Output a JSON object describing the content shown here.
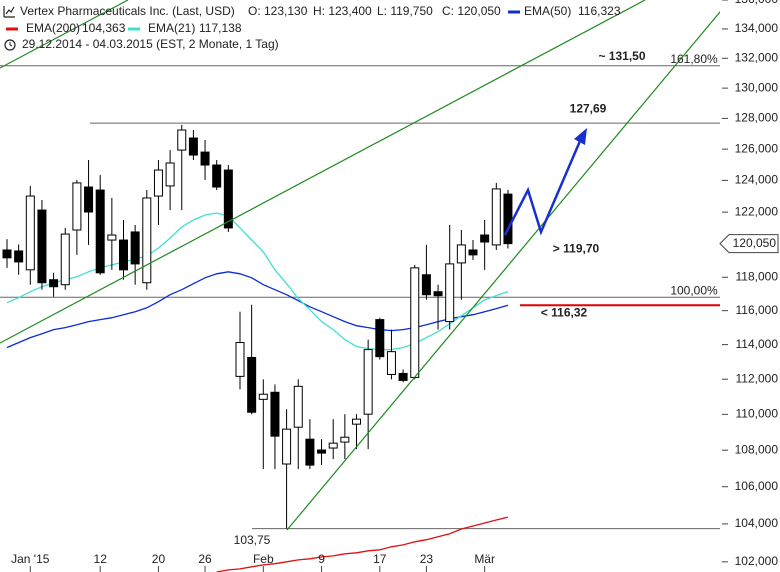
{
  "chart_data": {
    "type": "candlestick",
    "title": "Vertex Pharmaceuticals Inc. (Last, USD)",
    "subtitle": "29.12.2014 - 04.03.2015 (EST, 2 Monate, 1 Tag)",
    "header": {
      "open": "O: 123,130",
      "high": "H: 123,400",
      "low": "L: 119,750",
      "close": "C: 120,050"
    },
    "categories": [
      null,
      null,
      "Jan '15",
      null,
      null,
      null,
      null,
      null,
      "12",
      null,
      null,
      null,
      null,
      "20",
      null,
      null,
      null,
      "26",
      null,
      null,
      null,
      null,
      "Feb",
      null,
      null,
      null,
      null,
      "9",
      null,
      null,
      null,
      null,
      "17",
      null,
      null,
      null,
      "23",
      null,
      null,
      null,
      null,
      "Mär",
      null,
      null
    ],
    "open": [
      119.66,
      119.6,
      118.45,
      122.13,
      117.85,
      117.55,
      120.89,
      123.58,
      123.39,
      120.27,
      120.27,
      120.77,
      117.67,
      123.01,
      123.65,
      125.94,
      126.72,
      125.81,
      124.98,
      124.66,
      112.16,
      113.25,
      110.85,
      111.25,
      107.24,
      109.28,
      108.61,
      108.01,
      108.12,
      108.45,
      109.45,
      110.01,
      115.47,
      112.27,
      112.33,
      112.1,
      118.15,
      117.13,
      115.35,
      118.87,
      119.66,
      120.58,
      119.97,
      123.13
    ],
    "high": [
      120.33,
      120.0,
      123.65,
      122.76,
      118.27,
      121.02,
      124.03,
      125.3,
      124.34,
      122.89,
      121.51,
      121.2,
      123.39,
      125.3,
      125.94,
      127.57,
      127.24,
      126.59,
      125.3,
      124.98,
      115.94,
      116.35,
      111.99,
      111.7,
      110.29,
      111.99,
      109.73,
      108.61,
      109.73,
      110.01,
      110.01,
      114.29,
      115.58,
      114.88,
      112.56,
      118.75,
      119.97,
      117.55,
      121.2,
      120.89,
      120.27,
      121.51,
      123.84,
      123.4
    ],
    "low": [
      118.57,
      118.15,
      117.55,
      117.25,
      116.83,
      117.25,
      119.36,
      119.97,
      118.15,
      118.45,
      117.85,
      117.55,
      117.25,
      121.2,
      122.13,
      122.13,
      125.3,
      124.03,
      123.39,
      120.77,
      111.42,
      110.01,
      106.96,
      106.96,
      103.75,
      106.96,
      106.96,
      107.18,
      107.51,
      107.51,
      108.06,
      108.06,
      113.13,
      111.99,
      111.82,
      111.99,
      116.65,
      114.88,
      114.88,
      116.65,
      119.05,
      118.45,
      119.66,
      119.75
    ],
    "close": [
      119.18,
      118.93,
      123.01,
      117.67,
      117.43,
      120.64,
      123.84,
      122.01,
      118.27,
      120.58,
      118.45,
      118.81,
      122.89,
      124.66,
      125.11,
      127.24,
      125.62,
      124.98,
      123.58,
      121.02,
      114.12,
      110.12,
      111.14,
      108.78,
      109.17,
      111.59,
      107.18,
      107.84,
      108.39,
      108.72,
      109.73,
      113.71,
      113.3,
      113.59,
      111.93,
      118.57,
      116.95,
      116.89,
      118.81,
      119.97,
      119.36,
      120.15,
      123.46,
      120.05
    ],
    "up_color": "#ffffff",
    "down_color": "#000000",
    "series": [
      {
        "name": "EMA(50)",
        "color": "#0a2bd6",
        "value_label": "116,323",
        "values": [
          113.83,
          114.12,
          114.41,
          114.64,
          114.88,
          115.0,
          115.17,
          115.35,
          115.47,
          115.58,
          115.76,
          115.94,
          116.17,
          116.53,
          116.95,
          117.25,
          117.61,
          117.97,
          118.21,
          118.33,
          118.21,
          117.97,
          117.55,
          117.25,
          116.95,
          116.59,
          116.23,
          115.94,
          115.64,
          115.35,
          115.11,
          115.0,
          114.88,
          114.82,
          114.88,
          115.0,
          115.17,
          115.35,
          115.52,
          115.64,
          115.76,
          115.94,
          116.12,
          116.323
        ]
      },
      {
        "name": "EMA(200)",
        "color": "#e01010",
        "value_label": "104,363",
        "values": [
          null,
          null,
          null,
          null,
          null,
          null,
          null,
          null,
          null,
          null,
          null,
          null,
          null,
          null,
          null,
          null,
          null,
          null,
          101.47,
          101.58,
          101.63,
          101.74,
          101.84,
          101.9,
          102.0,
          102.1,
          102.16,
          102.26,
          102.31,
          102.42,
          102.47,
          102.58,
          102.63,
          102.79,
          102.89,
          103.05,
          103.16,
          103.32,
          103.48,
          103.73,
          103.89,
          104.05,
          104.21,
          104.363
        ]
      },
      {
        "name": "EMA(21)",
        "color": "#40e0d0",
        "value_label": "117,138",
        "values": [
          116.47,
          116.77,
          117.13,
          117.43,
          117.67,
          117.85,
          118.03,
          118.33,
          118.57,
          118.75,
          118.93,
          119.11,
          119.3,
          119.78,
          120.39,
          121.08,
          121.51,
          121.82,
          121.95,
          121.76,
          121.02,
          120.27,
          119.54,
          118.45,
          117.61,
          116.71,
          116.06,
          115.35,
          114.88,
          114.29,
          113.89,
          113.77,
          113.71,
          113.71,
          113.83,
          114.06,
          114.41,
          114.76,
          115.23,
          115.7,
          116.17,
          116.65,
          116.9,
          117.138
        ]
      }
    ],
    "log_scale": true,
    "grid": false,
    "ylim": [
      101.47,
      136
    ],
    "yticks": [
      {
        "value": 102,
        "label": "102,000"
      },
      {
        "value": 104,
        "label": "104,000"
      },
      {
        "value": 106,
        "label": "106,000"
      },
      {
        "value": 108,
        "label": "108,000"
      },
      {
        "value": 110,
        "label": "110,000"
      },
      {
        "value": 112,
        "label": "112,000"
      },
      {
        "value": 114,
        "label": "114,000"
      },
      {
        "value": 116,
        "label": "116,000"
      },
      {
        "value": 118,
        "label": "118,000"
      },
      {
        "value": 120,
        "label": "120,000"
      },
      {
        "value": 122,
        "label": "122,000"
      },
      {
        "value": 124,
        "label": "124,000"
      },
      {
        "value": 126,
        "label": "126,000"
      },
      {
        "value": 128,
        "label": "128,000"
      },
      {
        "value": 130,
        "label": "130,000"
      },
      {
        "value": 132,
        "label": "132,000"
      },
      {
        "value": 134,
        "label": "134,000"
      },
      {
        "value": 136,
        "label": "136,000"
      }
    ],
    "levels": [
      {
        "value": 131.5,
        "label": "~ 131,50",
        "ratio": "161,80%",
        "color": "#1a2fd0"
      },
      {
        "value": 127.69,
        "label": "127,69",
        "color": "#1a2fd0"
      },
      {
        "value": 116.8,
        "ratio": "100,00%"
      },
      {
        "value": 103.75,
        "label": "103,75",
        "color": "#777777"
      },
      {
        "value": 116.32,
        "label": "< 116,32",
        "color": "#e00000"
      },
      {
        "value": 119.7,
        "label": "> 119,70",
        "color": "#1a2fd0"
      }
    ],
    "last": {
      "value": 120.05,
      "label": "120,050"
    }
  }
}
